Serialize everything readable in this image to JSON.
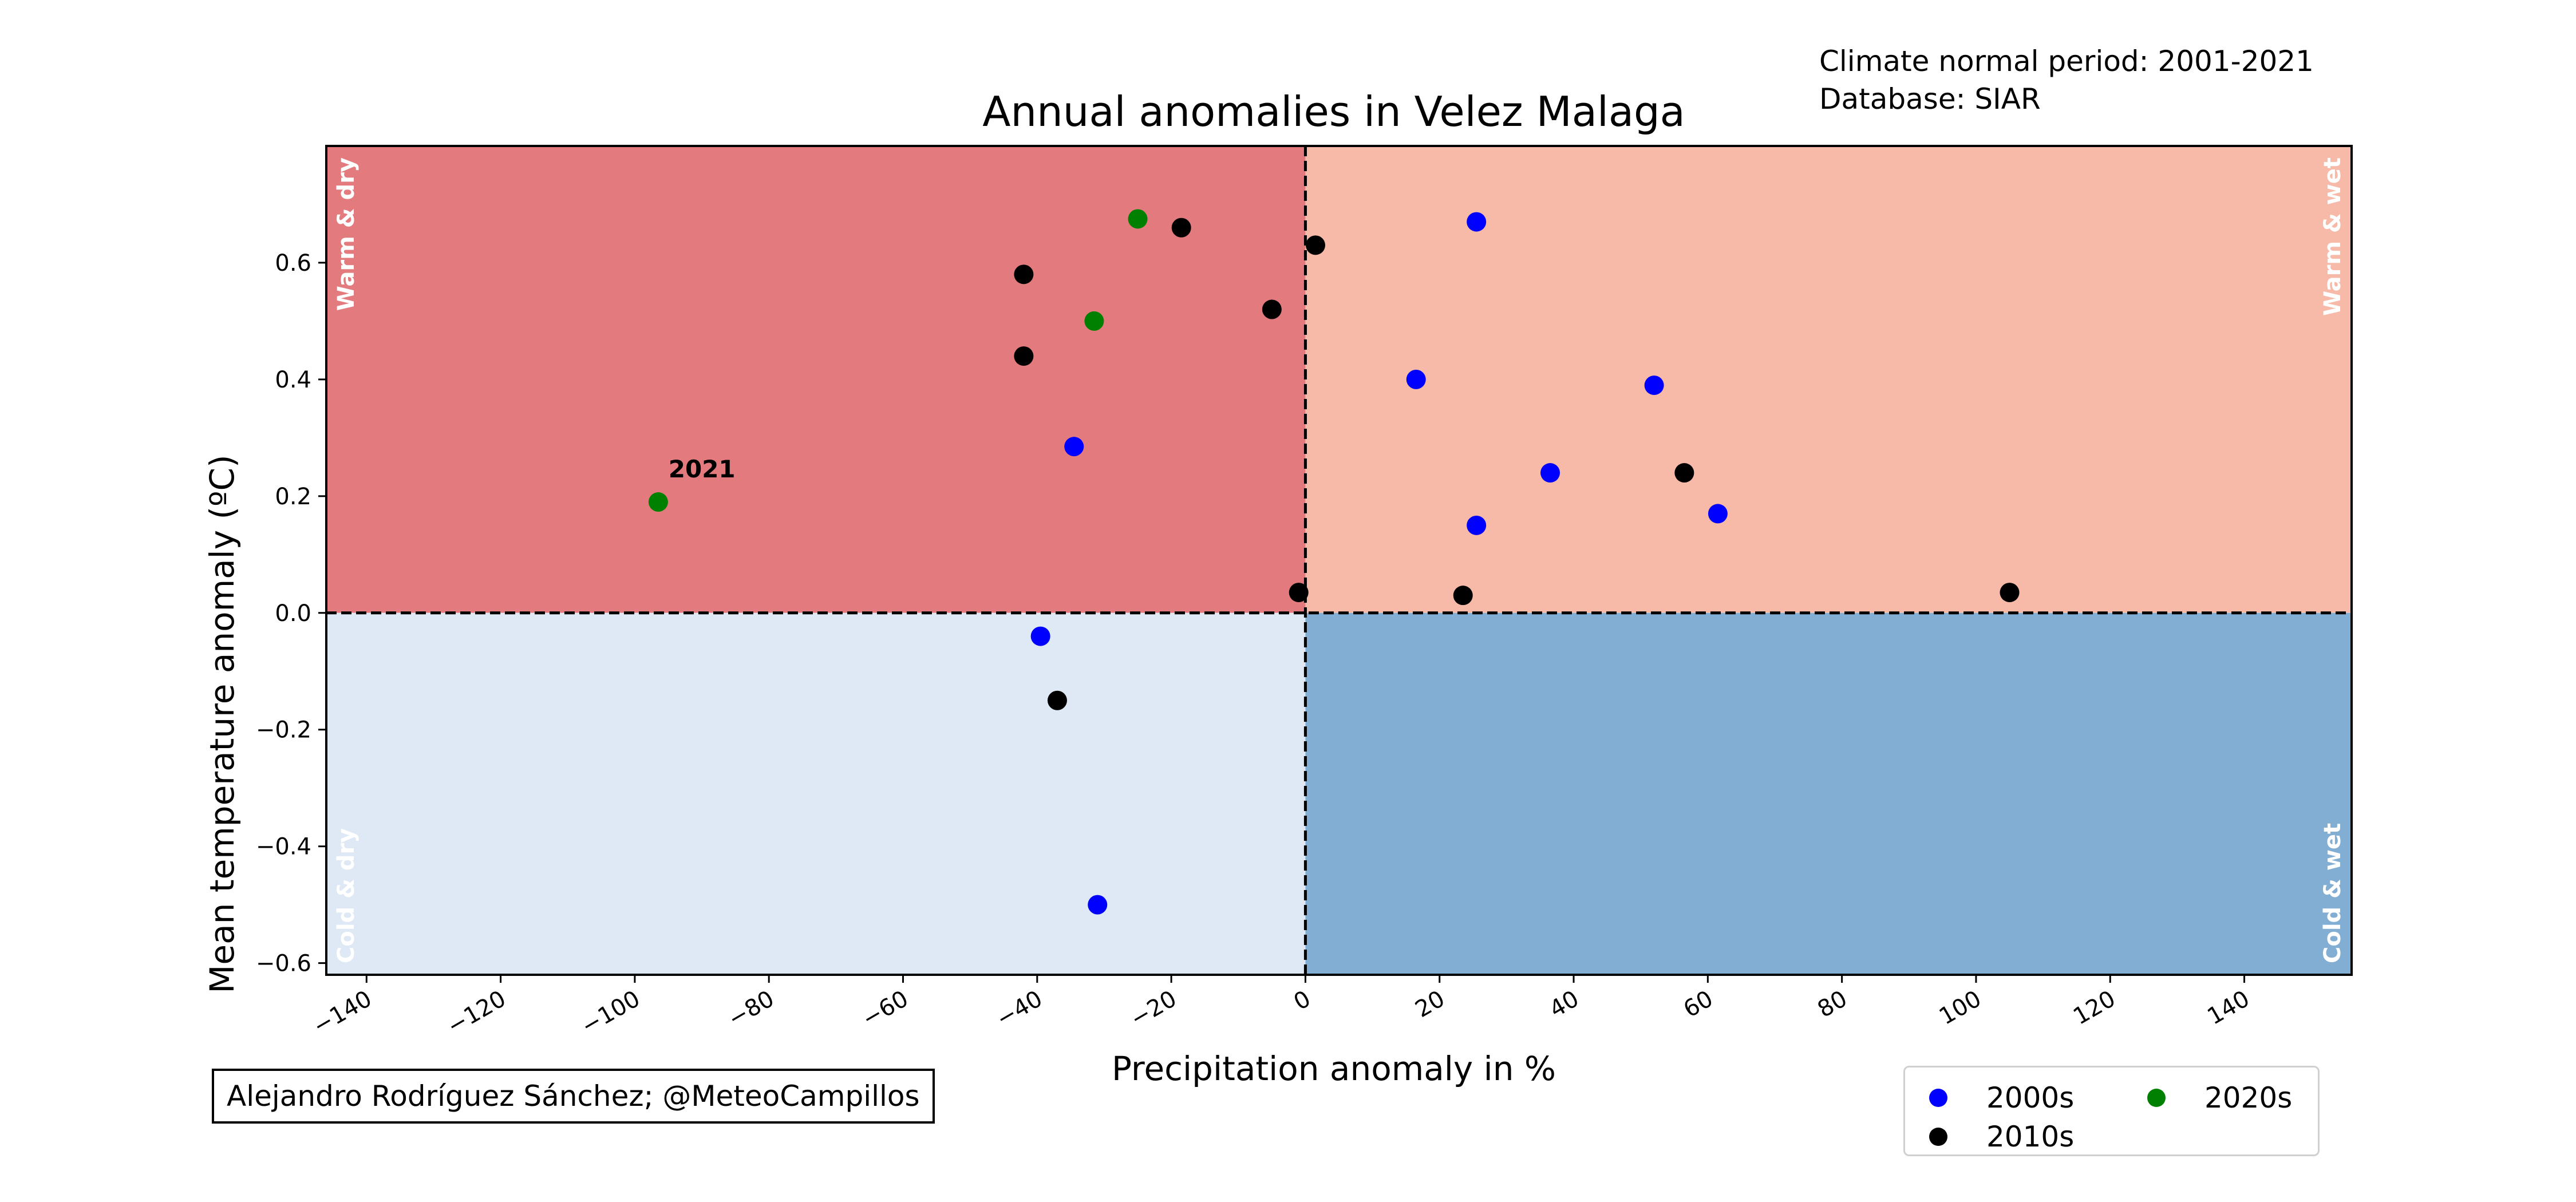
{
  "notes": {
    "period": "Climate normal period: 2001-2021",
    "database": "Database: SIAR"
  },
  "credit": "Alejandro Rodríguez Sánchez; @MeteoCampillos",
  "colors": {
    "warm_dry": "#e37b7e",
    "warm_wet": "#f7baa8",
    "cold_dry": "#dee9f5",
    "cold_wet": "#82aed4"
  },
  "legend": {
    "items": [
      {
        "label": "2000s",
        "color": "#0000ff"
      },
      {
        "label": "2010s",
        "color": "#000000"
      },
      {
        "label": "2020s",
        "color": "#008000"
      }
    ]
  },
  "chart_data": {
    "type": "scatter",
    "title": "Annual anomalies in Velez Malaga",
    "xlabel": "Precipitation anomaly in %",
    "ylabel": "Mean temperature anomaly (ºC)",
    "xlim": [
      -146,
      156
    ],
    "ylim": [
      -0.62,
      0.8
    ],
    "xticks": [
      -140,
      -120,
      -100,
      -80,
      -60,
      -40,
      -20,
      0,
      20,
      40,
      60,
      80,
      100,
      120,
      140
    ],
    "yticks": [
      -0.6,
      -0.4,
      -0.2,
      0.0,
      0.2,
      0.4,
      0.6
    ],
    "xtick_labels": [
      "−140",
      "−120",
      "−100",
      "−80",
      "−60",
      "−40",
      "−20",
      "0",
      "20",
      "40",
      "60",
      "80",
      "100",
      "120",
      "140"
    ],
    "ytick_labels": [
      "−0.6",
      "−0.4",
      "−0.2",
      "0.0",
      "0.2",
      "0.4",
      "0.6"
    ],
    "quadrant_labels": {
      "warm_dry": "Warm & dry",
      "warm_wet": "Warm & wet",
      "cold_dry": "Cold & dry",
      "cold_wet": "Cold & wet"
    },
    "annotation": {
      "text": "2021",
      "x": -96,
      "y": 0.19
    },
    "series": [
      {
        "name": "2000s",
        "color": "#0000ff",
        "points": [
          [
            25.5,
            0.67
          ],
          [
            16.5,
            0.4
          ],
          [
            52,
            0.39
          ],
          [
            36.5,
            0.24
          ],
          [
            25.5,
            0.15
          ],
          [
            61.5,
            0.17
          ],
          [
            -34.5,
            0.285
          ],
          [
            -39.5,
            -0.04
          ],
          [
            -31,
            -0.5
          ]
        ]
      },
      {
        "name": "2010s",
        "color": "#000000",
        "points": [
          [
            -18.5,
            0.66
          ],
          [
            1.5,
            0.63
          ],
          [
            -42,
            0.58
          ],
          [
            -5,
            0.52
          ],
          [
            -42,
            0.44
          ],
          [
            56.5,
            0.24
          ],
          [
            -1,
            0.035
          ],
          [
            23.5,
            0.03
          ],
          [
            105,
            0.035
          ],
          [
            -37,
            -0.15
          ]
        ]
      },
      {
        "name": "2020s",
        "color": "#008000",
        "points": [
          [
            -25,
            0.675
          ],
          [
            -31.5,
            0.5
          ],
          [
            -96.5,
            0.19
          ]
        ]
      }
    ]
  }
}
